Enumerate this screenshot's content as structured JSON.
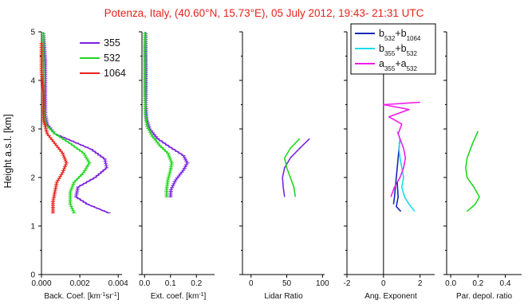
{
  "figure": {
    "title": "Potenza, Italy, (40.60°N, 15.73°E), 05 July 2012, 19:43- 21:31 UTC",
    "ylabel": "Height a.s.l. [km]"
  },
  "colors": {
    "title": "#e8211b",
    "c355": "#7b22e0",
    "c532": "#22d620",
    "c1064": "#e8211b",
    "angB": "#1528b8",
    "angBb": "#18dcec",
    "angA": "#f21ce8",
    "zero_line": "#000000"
  },
  "chart_data": [
    {
      "type": "line",
      "panel": "backscatter",
      "xlabel_parts": [
        {
          "t": "Back. Coef. [km",
          "s": 0
        },
        {
          "t": "-1",
          "s": 1
        },
        {
          "t": "sr",
          "s": 0
        },
        {
          "t": "-1",
          "s": 1
        },
        {
          "t": "]",
          "s": 0
        }
      ],
      "xlim": [
        0,
        0.0042
      ],
      "ylim": [
        0,
        5
      ],
      "xticks": [
        "0.000",
        "0.002",
        "0.004"
      ],
      "xtick_values": [
        0,
        0.002,
        0.004
      ],
      "yticks": [
        "0",
        "1",
        "2",
        "3",
        "4",
        "5"
      ],
      "ytick_values": [
        0,
        1,
        2,
        3,
        4,
        5
      ],
      "legend": [
        {
          "name": "355",
          "color": "#7b22e0"
        },
        {
          "name": "532",
          "color": "#22d620"
        },
        {
          "name": "1064",
          "color": "#e8211b"
        }
      ],
      "series": [
        {
          "name": "355",
          "color": "#7b22e0",
          "error_bars": true,
          "points": [
            [
              0.0035,
              1.27
            ],
            [
              0.0024,
              1.45
            ],
            [
              0.0018,
              1.6
            ],
            [
              0.0019,
              1.8
            ],
            [
              0.0028,
              2.0
            ],
            [
              0.0034,
              2.2
            ],
            [
              0.0033,
              2.38
            ],
            [
              0.0026,
              2.58
            ],
            [
              0.0016,
              2.75
            ],
            [
              0.0007,
              2.9
            ],
            [
              0.0003,
              3.1
            ],
            [
              0.0002,
              3.3
            ],
            [
              0.0002,
              3.6
            ],
            [
              0.0002,
              4.0
            ],
            [
              0.0002,
              4.4
            ],
            [
              0.0001,
              5.0
            ]
          ]
        },
        {
          "name": "532",
          "color": "#22d620",
          "error_bars": true,
          "points": [
            [
              0.0017,
              1.27
            ],
            [
              0.0015,
              1.45
            ],
            [
              0.0015,
              1.7
            ],
            [
              0.0017,
              1.9
            ],
            [
              0.0022,
              2.1
            ],
            [
              0.0025,
              2.3
            ],
            [
              0.0022,
              2.5
            ],
            [
              0.0015,
              2.7
            ],
            [
              0.0007,
              2.9
            ],
            [
              0.0002,
              3.1
            ],
            [
              0.0001,
              3.5
            ],
            [
              0.0001,
              4.0
            ],
            [
              0.0001,
              4.5
            ],
            [
              0.0001,
              5.0
            ]
          ]
        },
        {
          "name": "1064",
          "color": "#e8211b",
          "error_bars": true,
          "points": [
            [
              0.0006,
              1.27
            ],
            [
              0.0006,
              1.5
            ],
            [
              0.0007,
              1.7
            ],
            [
              0.0008,
              1.9
            ],
            [
              0.0011,
              2.1
            ],
            [
              0.0013,
              2.3
            ],
            [
              0.0011,
              2.5
            ],
            [
              0.0007,
              2.7
            ],
            [
              0.0003,
              2.9
            ],
            [
              0.0001,
              3.2
            ],
            [
              0.0001,
              3.7
            ],
            [
              0.0,
              4.2
            ],
            [
              0.0,
              4.8
            ]
          ]
        }
      ]
    },
    {
      "type": "line",
      "panel": "extinction",
      "xlabel_parts": [
        {
          "t": "Ext. coef. [km",
          "s": 0
        },
        {
          "t": "-1",
          "s": 1
        },
        {
          "t": "]",
          "s": 0
        }
      ],
      "xlim": [
        -0.01,
        0.27
      ],
      "ylim": [
        0,
        5
      ],
      "xticks": [
        "0.0",
        "0.1",
        "0.2"
      ],
      "xtick_values": [
        0,
        0.1,
        0.2
      ],
      "yticks": [
        "",
        "",
        "",
        "",
        "",
        ""
      ],
      "ytick_values": [
        0,
        1,
        2,
        3,
        4,
        5
      ],
      "series": [
        {
          "name": "355",
          "color": "#7b22e0",
          "error_bars": true,
          "points": [
            [
              0.1,
              1.6
            ],
            [
              0.102,
              1.75
            ],
            [
              0.12,
              1.95
            ],
            [
              0.15,
              2.15
            ],
            [
              0.165,
              2.3
            ],
            [
              0.15,
              2.45
            ],
            [
              0.1,
              2.62
            ],
            [
              0.05,
              2.8
            ],
            [
              0.02,
              3.0
            ],
            [
              0.008,
              3.2
            ],
            [
              0.005,
              3.5
            ],
            [
              0.005,
              3.8
            ],
            [
              0.005,
              4.2
            ],
            [
              0.004,
              4.6
            ],
            [
              0.004,
              5.0
            ]
          ]
        },
        {
          "name": "532",
          "color": "#22d620",
          "error_bars": true,
          "points": [
            [
              0.085,
              1.6
            ],
            [
              0.085,
              1.75
            ],
            [
              0.09,
              1.95
            ],
            [
              0.1,
              2.15
            ],
            [
              0.105,
              2.3
            ],
            [
              0.09,
              2.5
            ],
            [
              0.06,
              2.65
            ],
            [
              0.03,
              2.85
            ],
            [
              0.01,
              3.05
            ],
            [
              0.003,
              3.3
            ],
            [
              0.002,
              3.7
            ],
            [
              0.002,
              4.1
            ],
            [
              0.002,
              4.5
            ],
            [
              0.002,
              5.0
            ]
          ]
        }
      ]
    },
    {
      "type": "line",
      "panel": "lidar-ratio",
      "xlabel_parts": [
        {
          "t": "Lidar Ratio",
          "s": 0
        }
      ],
      "xlim": [
        -12,
        103
      ],
      "ylim": [
        0,
        5
      ],
      "xticks": [
        "0",
        "50",
        "100"
      ],
      "xtick_values": [
        0,
        50,
        100
      ],
      "yticks": [
        "",
        "",
        "",
        "",
        "",
        ""
      ],
      "ytick_values": [
        0,
        1,
        2,
        3,
        4,
        5
      ],
      "series": [
        {
          "name": "355",
          "color": "#7b22e0",
          "error_bars": false,
          "points": [
            [
              47,
              1.6
            ],
            [
              45,
              1.8
            ],
            [
              44,
              2.0
            ],
            [
              47,
              2.2
            ],
            [
              55,
              2.4
            ],
            [
              68,
              2.6
            ],
            [
              82,
              2.8
            ]
          ]
        },
        {
          "name": "532",
          "color": "#22d620",
          "error_bars": false,
          "points": [
            [
              62,
              1.6
            ],
            [
              60,
              1.8
            ],
            [
              55,
              2.0
            ],
            [
              50,
              2.2
            ],
            [
              47,
              2.4
            ],
            [
              55,
              2.6
            ],
            [
              68,
              2.8
            ]
          ]
        }
      ]
    },
    {
      "type": "line",
      "panel": "angstrom",
      "xlabel_parts": [
        {
          "t": "Ang. Exponent",
          "s": 0
        }
      ],
      "xlim": [
        -2,
        2.8
      ],
      "ylim": [
        0,
        5
      ],
      "xticks": [
        "-2",
        "0",
        "2"
      ],
      "xtick_values": [
        -2,
        0,
        2
      ],
      "yticks": [
        "",
        "",
        "",
        "",
        "",
        ""
      ],
      "ytick_values": [
        0,
        1,
        2,
        3,
        4,
        5
      ],
      "zero_line": 0,
      "legend": [
        {
          "color": "#1528b8",
          "parts": [
            {
              "t": "b",
              "s": 0
            },
            {
              "t": "532",
              "s": -1
            },
            {
              "t": "+b",
              "s": 0
            },
            {
              "t": "1064",
              "s": -1
            }
          ]
        },
        {
          "color": "#18dcec",
          "parts": [
            {
              "t": "b",
              "s": 0
            },
            {
              "t": "355",
              "s": -1
            },
            {
              "t": "+b",
              "s": 0
            },
            {
              "t": "532",
              "s": -1
            }
          ]
        },
        {
          "color": "#f21ce8",
          "parts": [
            {
              "t": "a",
              "s": 0
            },
            {
              "t": "355",
              "s": -1
            },
            {
              "t": "+a",
              "s": 0
            },
            {
              "t": "532",
              "s": -1
            }
          ]
        }
      ],
      "series": [
        {
          "name": "b532/b1064",
          "color": "#1528b8",
          "error_bars": false,
          "points": [
            [
              0.55,
              1.45
            ],
            [
              0.6,
              1.6
            ],
            [
              0.65,
              1.8
            ],
            [
              0.7,
              2.0
            ],
            [
              0.75,
              2.2
            ],
            [
              0.8,
              2.4
            ],
            [
              0.85,
              2.6
            ],
            [
              0.9,
              2.8
            ]
          ]
        },
        {
          "name": "b355/b532",
          "color": "#18dcec",
          "error_bars": false,
          "points": [
            [
              1.7,
              1.3
            ],
            [
              1.4,
              1.45
            ],
            [
              1.15,
              1.6
            ],
            [
              1.0,
              1.8
            ],
            [
              1.1,
              2.0
            ],
            [
              1.0,
              2.2
            ],
            [
              0.9,
              2.4
            ],
            [
              0.85,
              2.6
            ],
            [
              0.9,
              2.8
            ],
            [
              0.75,
              2.95
            ]
          ]
        },
        {
          "name": "a355/a532",
          "color": "#f21ce8",
          "error_bars": false,
          "points": [
            [
              0.4,
              1.6
            ],
            [
              0.6,
              1.8
            ],
            [
              0.9,
              2.0
            ],
            [
              1.1,
              2.2
            ],
            [
              1.2,
              2.4
            ],
            [
              1.1,
              2.6
            ],
            [
              0.8,
              2.9
            ],
            [
              1.0,
              3.1
            ],
            [
              0.3,
              3.25
            ],
            [
              1.4,
              3.4
            ],
            [
              0.0,
              3.5
            ],
            [
              2.0,
              3.55
            ]
          ]
        },
        {
          "name": "",
          "color": "#1528b8",
          "error_bars": false,
          "points": [
            [
              0.95,
              1.3
            ],
            [
              0.7,
              1.4
            ],
            [
              0.8,
              1.6
            ],
            [
              0.75,
              1.9
            ]
          ]
        }
      ]
    },
    {
      "type": "line",
      "panel": "depolarization",
      "xlabel_parts": [
        {
          "t": "Par. depol. ratio",
          "s": 0
        }
      ],
      "xlim": [
        -0.03,
        0.52
      ],
      "ylim": [
        0,
        5
      ],
      "xticks": [
        "0.0",
        "0.2",
        "0.4"
      ],
      "xtick_values": [
        0,
        0.2,
        0.4
      ],
      "yticks": [
        "",
        "",
        "",
        "",
        "",
        ""
      ],
      "ytick_values": [
        0,
        1,
        2,
        3,
        4,
        5
      ],
      "series": [
        {
          "name": "532",
          "color": "#22d620",
          "error_bars": false,
          "points": [
            [
              0.12,
              1.3
            ],
            [
              0.18,
              1.45
            ],
            [
              0.21,
              1.6
            ],
            [
              0.17,
              1.8
            ],
            [
              0.12,
              2.0
            ],
            [
              0.11,
              2.2
            ],
            [
              0.12,
              2.4
            ],
            [
              0.16,
              2.7
            ],
            [
              0.2,
              2.95
            ]
          ]
        }
      ]
    }
  ]
}
